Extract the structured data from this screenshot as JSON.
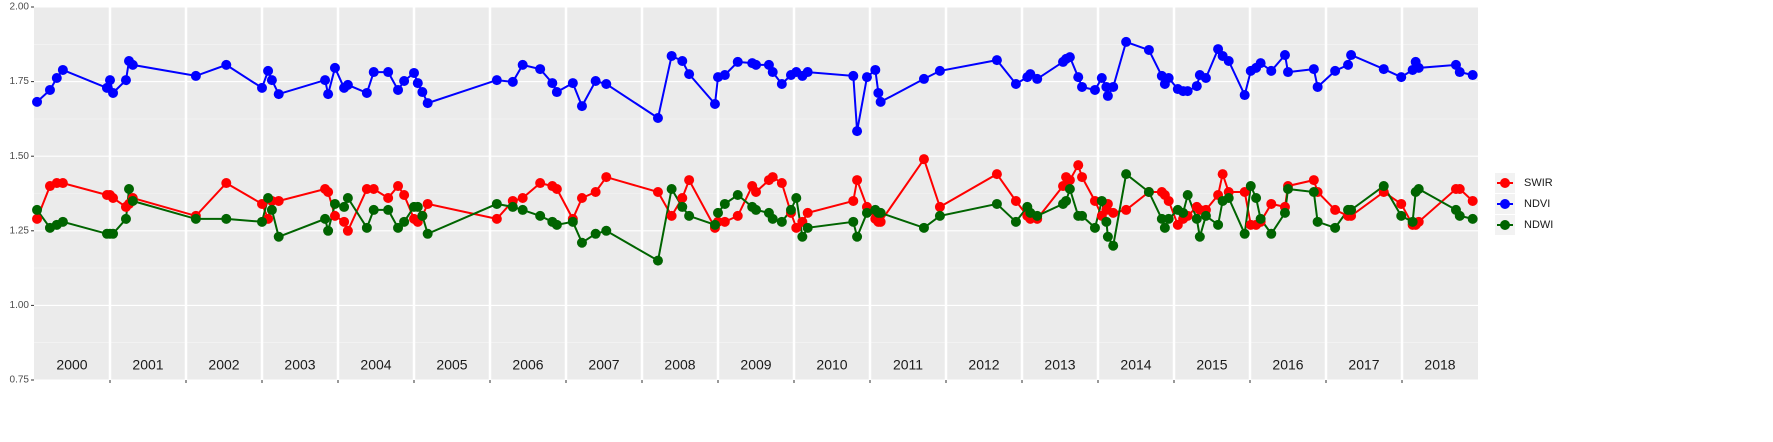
{
  "chart_data": {
    "type": "line",
    "x": [
      2000.04,
      2000.21,
      2000.3,
      2000.38,
      2000.96,
      2001.0,
      2001.04,
      2001.21,
      2001.25,
      2001.3,
      2002.13,
      2002.53,
      2003.0,
      2003.08,
      2003.13,
      2003.22,
      2003.83,
      2003.87,
      2003.96,
      2004.08,
      2004.13,
      2004.38,
      2004.47,
      2004.66,
      2004.79,
      2004.87,
      2005.0,
      2005.05,
      2005.11,
      2005.18,
      2006.09,
      2006.3,
      2006.43,
      2006.66,
      2006.82,
      2006.88,
      2007.09,
      2007.21,
      2007.39,
      2007.53,
      2008.21,
      2008.39,
      2008.53,
      2008.62,
      2008.96,
      2009.0,
      2009.09,
      2009.26,
      2009.45,
      2009.5,
      2009.67,
      2009.72,
      2009.84,
      2009.96,
      2010.03,
      2010.11,
      2010.18,
      2010.78,
      2010.83,
      2010.96,
      2011.07,
      2011.11,
      2011.14,
      2011.71,
      2011.92,
      2012.67,
      2012.92,
      2013.07,
      2013.11,
      2013.2,
      2013.54,
      2013.58,
      2013.63,
      2013.74,
      2013.79,
      2013.96,
      2014.05,
      2014.11,
      2014.13,
      2014.2,
      2014.37,
      2014.67,
      2014.84,
      2014.88,
      2014.93,
      2015.05,
      2015.12,
      2015.18,
      2015.3,
      2015.34,
      2015.42,
      2015.58,
      2015.64,
      2015.72,
      2015.93,
      2016.01,
      2016.08,
      2016.14,
      2016.28,
      2016.46,
      2016.5,
      2016.84,
      2016.89,
      2017.12,
      2017.29,
      2017.33,
      2017.76,
      2017.99,
      2018.14,
      2018.18,
      2018.22,
      2018.71,
      2018.76,
      2018.93
    ],
    "series": [
      {
        "name": "SWIR",
        "color": "#ff0000",
        "values": [
          1.29,
          1.4,
          1.41,
          1.41,
          1.37,
          1.37,
          1.36,
          1.33,
          1.34,
          1.36,
          1.3,
          1.41,
          1.34,
          1.29,
          1.35,
          1.35,
          1.39,
          1.38,
          1.3,
          1.28,
          1.25,
          1.39,
          1.39,
          1.36,
          1.4,
          1.37,
          1.29,
          1.28,
          1.3,
          1.34,
          1.29,
          1.35,
          1.36,
          1.41,
          1.4,
          1.39,
          1.29,
          1.36,
          1.38,
          1.43,
          1.38,
          1.3,
          1.36,
          1.42,
          1.26,
          1.28,
          1.28,
          1.3,
          1.4,
          1.38,
          1.42,
          1.43,
          1.41,
          1.31,
          1.26,
          1.28,
          1.31,
          1.35,
          1.42,
          1.33,
          1.29,
          1.28,
          1.28,
          1.49,
          1.33,
          1.44,
          1.35,
          1.3,
          1.29,
          1.29,
          1.4,
          1.43,
          1.42,
          1.47,
          1.43,
          1.35,
          1.3,
          1.32,
          1.34,
          1.31,
          1.32,
          1.38,
          1.38,
          1.37,
          1.35,
          1.27,
          1.29,
          1.3,
          1.33,
          1.32,
          1.32,
          1.37,
          1.44,
          1.38,
          1.38,
          1.27,
          1.27,
          1.28,
          1.34,
          1.33,
          1.4,
          1.42,
          1.38,
          1.32,
          1.3,
          1.3,
          1.38,
          1.34,
          1.27,
          1.27,
          1.28,
          1.39,
          1.39,
          1.35
        ]
      },
      {
        "name": "NDVI",
        "color": "#0000ff",
        "values": [
          1.682,
          1.722,
          1.762,
          1.789,
          1.729,
          1.755,
          1.712,
          1.755,
          1.819,
          1.806,
          1.769,
          1.806,
          1.729,
          1.786,
          1.755,
          1.708,
          1.755,
          1.708,
          1.796,
          1.729,
          1.739,
          1.712,
          1.782,
          1.782,
          1.722,
          1.752,
          1.779,
          1.745,
          1.715,
          1.678,
          1.755,
          1.749,
          1.806,
          1.792,
          1.745,
          1.715,
          1.745,
          1.668,
          1.752,
          1.742,
          1.628,
          1.836,
          1.819,
          1.775,
          1.675,
          1.765,
          1.772,
          1.816,
          1.812,
          1.806,
          1.806,
          1.782,
          1.742,
          1.772,
          1.782,
          1.769,
          1.782,
          1.769,
          1.584,
          1.765,
          1.789,
          1.712,
          1.682,
          1.759,
          1.786,
          1.822,
          1.742,
          1.765,
          1.775,
          1.759,
          1.816,
          1.826,
          1.832,
          1.765,
          1.732,
          1.722,
          1.762,
          1.732,
          1.702,
          1.732,
          1.883,
          1.856,
          1.769,
          1.742,
          1.762,
          1.725,
          1.718,
          1.718,
          1.735,
          1.772,
          1.762,
          1.859,
          1.836,
          1.819,
          1.705,
          1.786,
          1.796,
          1.812,
          1.786,
          1.839,
          1.782,
          1.792,
          1.732,
          1.786,
          1.806,
          1.839,
          1.792,
          1.765,
          1.789,
          1.816,
          1.796,
          1.806,
          1.782,
          1.772
        ]
      },
      {
        "name": "NDWI",
        "color": "#006400",
        "values": [
          1.32,
          1.26,
          1.27,
          1.28,
          1.24,
          1.24,
          1.24,
          1.29,
          1.39,
          1.35,
          1.29,
          1.29,
          1.28,
          1.36,
          1.32,
          1.23,
          1.29,
          1.25,
          1.34,
          1.33,
          1.36,
          1.26,
          1.32,
          1.32,
          1.26,
          1.28,
          1.33,
          1.33,
          1.3,
          1.24,
          1.34,
          1.33,
          1.32,
          1.3,
          1.28,
          1.27,
          1.28,
          1.21,
          1.24,
          1.25,
          1.15,
          1.39,
          1.33,
          1.3,
          1.27,
          1.31,
          1.34,
          1.37,
          1.33,
          1.32,
          1.31,
          1.29,
          1.28,
          1.32,
          1.36,
          1.23,
          1.26,
          1.28,
          1.23,
          1.31,
          1.32,
          1.31,
          1.31,
          1.26,
          1.3,
          1.34,
          1.28,
          1.33,
          1.31,
          1.3,
          1.34,
          1.35,
          1.39,
          1.3,
          1.3,
          1.26,
          1.35,
          1.28,
          1.23,
          1.2,
          1.44,
          1.38,
          1.29,
          1.26,
          1.29,
          1.32,
          1.31,
          1.37,
          1.29,
          1.23,
          1.3,
          1.27,
          1.35,
          1.36,
          1.24,
          1.4,
          1.36,
          1.29,
          1.24,
          1.31,
          1.39,
          1.38,
          1.28,
          1.26,
          1.32,
          1.32,
          1.4,
          1.3,
          1.28,
          1.38,
          1.39,
          1.32,
          1.3,
          1.29
        ]
      }
    ],
    "xlim": [
      2000,
      2019
    ],
    "xticks": [
      2001,
      2002,
      2003,
      2004,
      2005,
      2006,
      2007,
      2008,
      2009,
      2010,
      2011,
      2012,
      2013,
      2014,
      2015,
      2016,
      2017,
      2018
    ],
    "ylim": [
      0.75,
      2.0
    ],
    "yticks": [
      0.75,
      {
        "value": 1,
        "label": "1.00"
      },
      1.25,
      {
        "value": 1.5,
        "label": "1.50"
      },
      1.75,
      {
        "value": 2,
        "label": "2.00"
      }
    ],
    "annotations": [
      {
        "label": "2000",
        "x": 2000.5
      },
      {
        "label": "2001",
        "x": 2001.5
      },
      {
        "label": "2002",
        "x": 2002.5
      },
      {
        "label": "2003",
        "x": 2003.5
      },
      {
        "label": "2004",
        "x": 2004.5
      },
      {
        "label": "2005",
        "x": 2005.5
      },
      {
        "label": "2006",
        "x": 2006.5
      },
      {
        "label": "2007",
        "x": 2007.5
      },
      {
        "label": "2008",
        "x": 2008.5
      },
      {
        "label": "2009",
        "x": 2009.5
      },
      {
        "label": "2010",
        "x": 2010.5
      },
      {
        "label": "2011",
        "x": 2011.5
      },
      {
        "label": "2012",
        "x": 2012.5
      },
      {
        "label": "2013",
        "x": 2013.5
      },
      {
        "label": "2014",
        "x": 2014.5
      },
      {
        "label": "2015",
        "x": 2015.5
      },
      {
        "label": "2016",
        "x": 2016.5
      },
      {
        "label": "2017",
        "x": 2017.5
      },
      {
        "label": "2018",
        "x": 2018.5
      }
    ],
    "grid": true,
    "legend": "right"
  }
}
